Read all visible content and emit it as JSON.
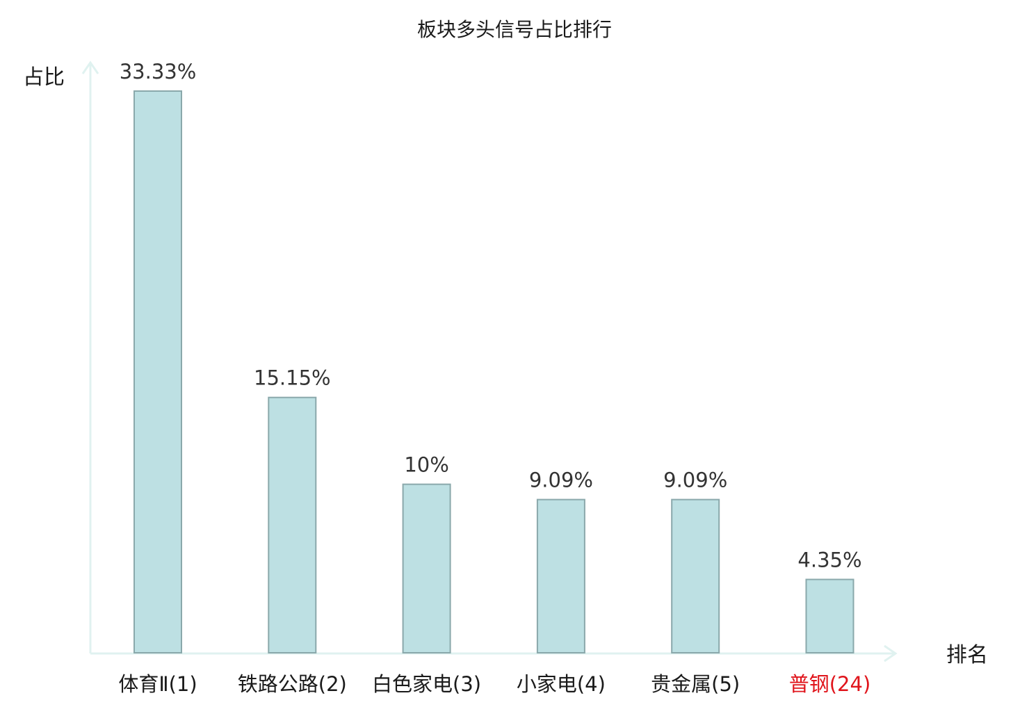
{
  "chart_data": {
    "type": "bar",
    "title": "板块多头信号占比排行",
    "ylabel": "占比",
    "xlabel": "排名",
    "categories": [
      "体育Ⅱ(1)",
      "铁路公路(2)",
      "白色家电(3)",
      "小家电(4)",
      "贵金属(5)",
      "普钢(24)"
    ],
    "values": [
      33.33,
      15.15,
      10,
      9.09,
      9.09,
      4.35
    ],
    "value_labels": [
      "33.33%",
      "15.15%",
      "10%",
      "9.09%",
      "9.09%",
      "4.35%"
    ],
    "highlight_index": 5,
    "ylim": [
      0,
      33.33
    ],
    "grid": false,
    "colors": {
      "bar_fill": "#bde0e3",
      "bar_stroke": "#8aa8ab",
      "axis": "#e0f2f0",
      "highlight_label": "#e0141b"
    }
  }
}
